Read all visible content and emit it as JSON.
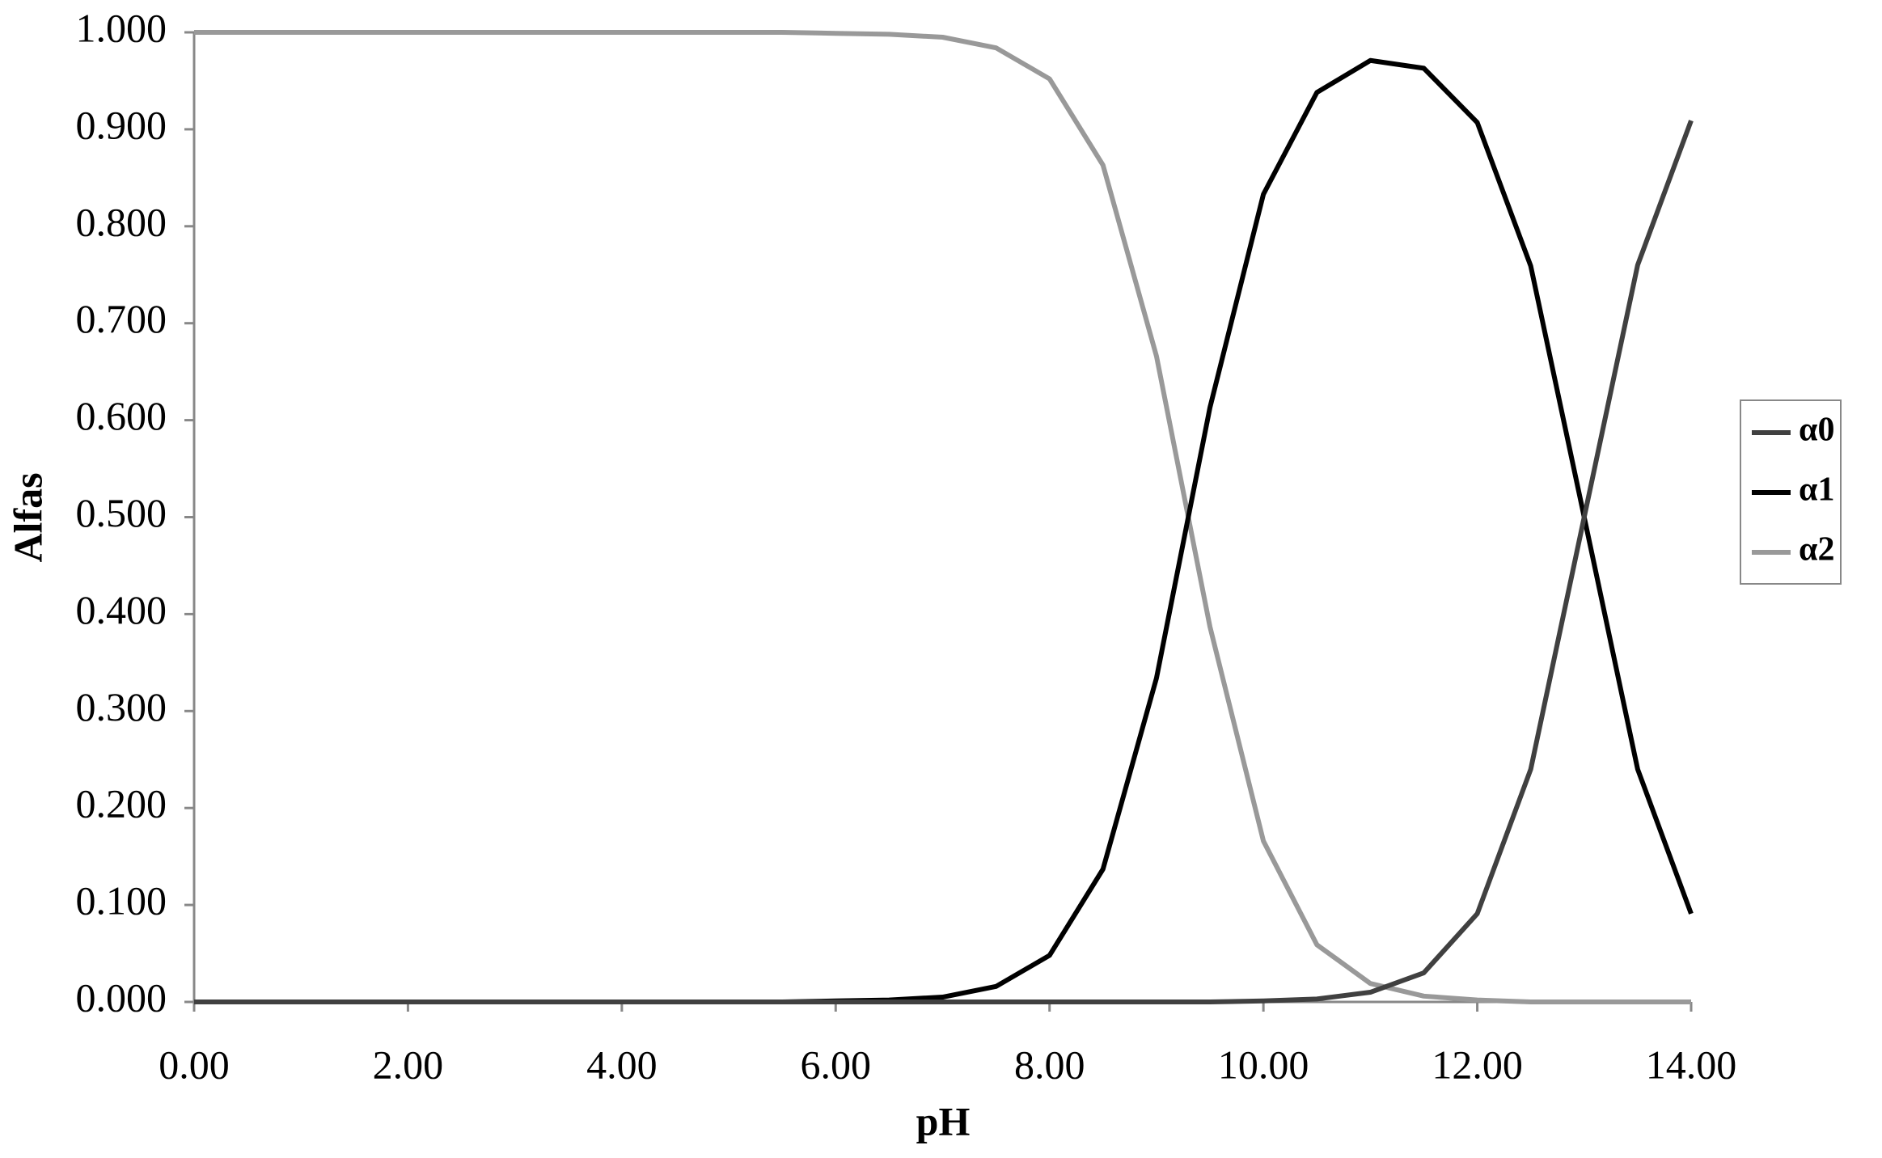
{
  "chart_data": {
    "type": "line",
    "x_label": "pH",
    "y_label": "Alfas",
    "x": [
      0,
      0.5,
      1,
      1.5,
      2,
      2.5,
      3,
      3.5,
      4,
      4.5,
      5,
      5.5,
      6,
      6.5,
      7,
      7.5,
      8,
      8.5,
      9,
      9.5,
      10,
      10.5,
      11,
      11.5,
      12,
      12.5,
      13,
      13.5,
      14
    ],
    "series": [
      {
        "name": "α0",
        "color": "#404040",
        "values": [
          0,
          0,
          0,
          0,
          0,
          0,
          0,
          0,
          0,
          0,
          0,
          0,
          0,
          0,
          0,
          0,
          0,
          0,
          0,
          0,
          0.001,
          0.003,
          0.01,
          0.03,
          0.091,
          0.24,
          0.5,
          0.76,
          0.909
        ]
      },
      {
        "name": "α1",
        "color": "#000000",
        "values": [
          0,
          0,
          0,
          0,
          0,
          0,
          0,
          0,
          0,
          0,
          0,
          0,
          0.001,
          0.002,
          0.005,
          0.016,
          0.048,
          0.137,
          0.334,
          0.613,
          0.833,
          0.938,
          0.971,
          0.963,
          0.907,
          0.759,
          0.5,
          0.24,
          0.091
        ]
      },
      {
        "name": "α2",
        "color": "#999999",
        "values": [
          1,
          1,
          1,
          1,
          1,
          1,
          1,
          1,
          1,
          1,
          1,
          1,
          0.999,
          0.998,
          0.995,
          0.984,
          0.952,
          0.863,
          0.666,
          0.387,
          0.166,
          0.059,
          0.019,
          0.006,
          0.002,
          0,
          0,
          0,
          0
        ]
      }
    ],
    "xlim": [
      0,
      14
    ],
    "xticks": [
      {
        "value": 0,
        "label": "0.00"
      },
      {
        "value": 2,
        "label": "2.00"
      },
      {
        "value": 4,
        "label": "4.00"
      },
      {
        "value": 6,
        "label": "6.00"
      },
      {
        "value": 8,
        "label": "8.00"
      },
      {
        "value": 10,
        "label": "10.00"
      },
      {
        "value": 12,
        "label": "12.00"
      },
      {
        "value": 14,
        "label": "14.00"
      }
    ],
    "ylim": [
      0,
      1
    ],
    "yticks": [
      {
        "value": 0,
        "label": "0.000"
      },
      {
        "value": 0.1,
        "label": "0.100"
      },
      {
        "value": 0.2,
        "label": "0.200"
      },
      {
        "value": 0.3,
        "label": "0.300"
      },
      {
        "value": 0.4,
        "label": "0.400"
      },
      {
        "value": 0.5,
        "label": "0.500"
      },
      {
        "value": 0.6,
        "label": "0.600"
      },
      {
        "value": 0.7,
        "label": "0.700"
      },
      {
        "value": 0.8,
        "label": "0.800"
      },
      {
        "value": 0.9,
        "label": "0.900"
      },
      {
        "value": 1,
        "label": "1.000"
      }
    ],
    "grid": false,
    "legend": "right"
  }
}
